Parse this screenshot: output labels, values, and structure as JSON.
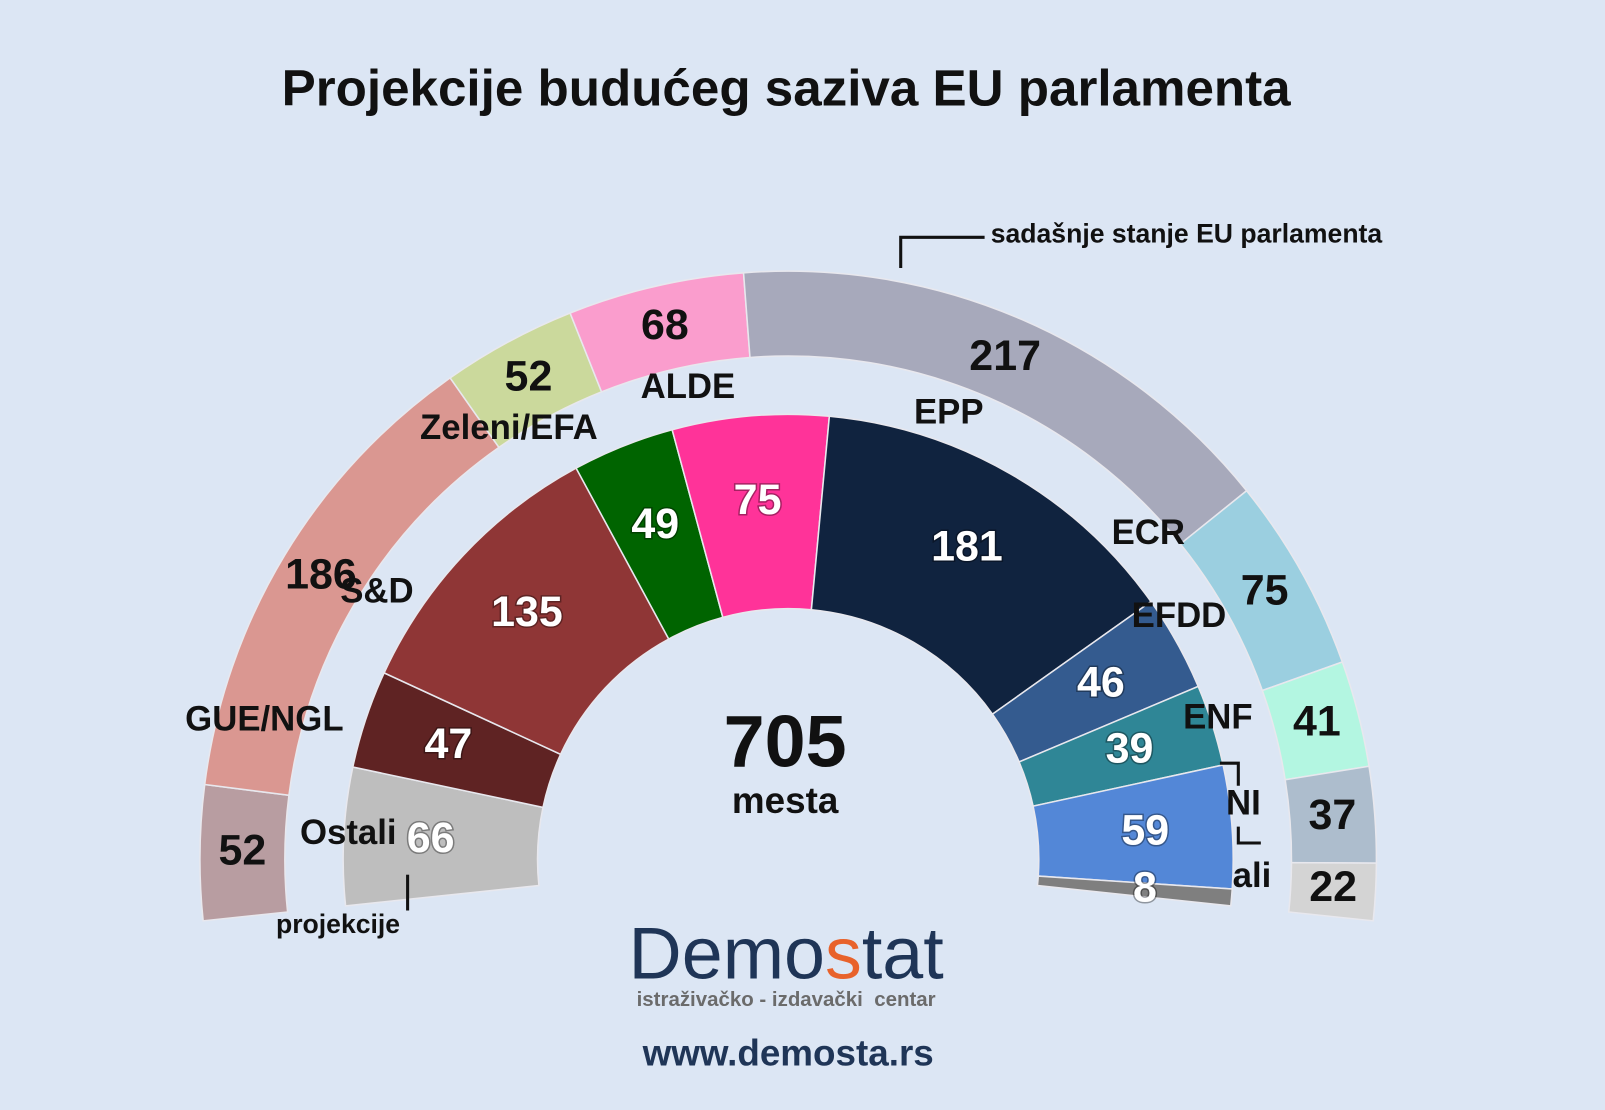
{
  "chart_data": {
    "type": "parliament",
    "title": "Projekcije budućeg saziva EU parlamenta",
    "total": 705,
    "total_label": "mesta",
    "series": [
      {
        "name": "sadašnje stanje EU parlamenta",
        "labels": [
          null,
          null,
          null,
          null,
          null,
          null,
          null,
          null,
          "Ostali"
        ],
        "values": [
          52,
          186,
          52,
          68,
          217,
          75,
          41,
          37,
          22
        ],
        "colors": [
          "#b89da1",
          "#da9791",
          "#cbd99c",
          "#fa9dcd",
          "#a7a9bb",
          "#9bcfe0",
          "#b3f6e1",
          "#adbdcd",
          "#d4d4d4"
        ]
      },
      {
        "name": "projekcije",
        "labels": [
          "Ostali",
          "GUE/NGL",
          "S&D",
          "Zeleni/EFA",
          "ALDE",
          "EPP",
          "ECR",
          "EFDD",
          "ENF",
          "NI"
        ],
        "values": [
          66,
          47,
          135,
          49,
          75,
          181,
          46,
          39,
          59,
          8
        ],
        "colors": [
          "#bebebe",
          "#5f2323",
          "#8f3636",
          "#006400",
          "#ff3399",
          "#10233f",
          "#345b8f",
          "#2f8696",
          "#5387d7",
          "#7f7f7f"
        ]
      }
    ]
  },
  "logo": {
    "name_parts": [
      "Demo",
      "s",
      "tat"
    ],
    "subtitle": "istraživačko - izdavački  centar",
    "url": "www.demosta.rs"
  }
}
